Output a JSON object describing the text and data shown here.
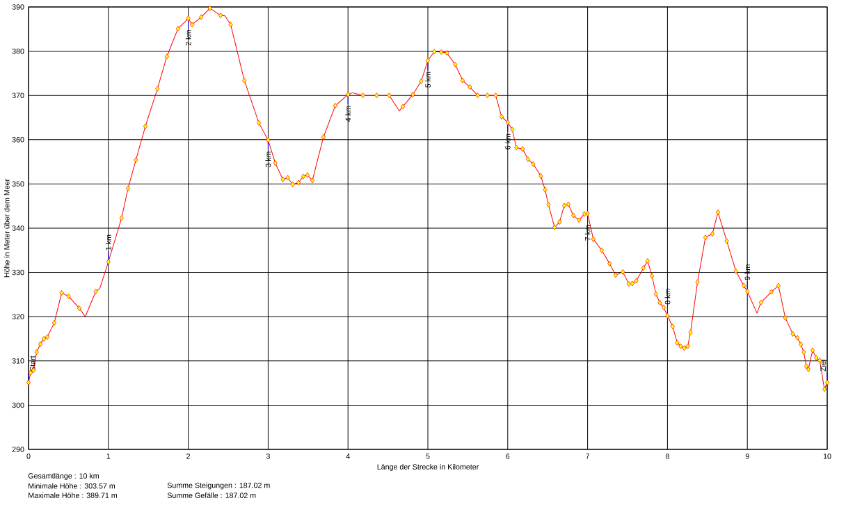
{
  "chart_data": {
    "type": "line",
    "xlabel": "Länge der Strecke in Kilometer",
    "ylabel": "Höhe in Meter über dem Meer",
    "xlim": [
      0,
      10
    ],
    "xticks": [
      0,
      1,
      2,
      3,
      4,
      5,
      6,
      7,
      8,
      9,
      10
    ],
    "ylim": [
      290,
      390
    ],
    "yticks": [
      290,
      300,
      310,
      320,
      330,
      340,
      350,
      360,
      370,
      380,
      390
    ],
    "grid": true,
    "series": [
      {
        "color": "#ff0000",
        "line_style": "solid",
        "x": [
          0,
          0.026,
          0.061,
          0.102,
          0.148,
          0.192,
          0.235,
          0.322,
          0.415,
          0.502,
          0.636,
          0.71,
          0.842,
          0.891,
          1.0,
          1.165,
          1.246,
          1.344,
          1.463,
          1.614,
          1.732,
          1.871,
          2.0,
          2.048,
          2.161,
          2.271,
          2.404,
          2.46,
          2.531,
          2.702,
          2.884,
          3.0,
          3.09,
          3.185,
          3.245,
          3.307,
          3.38,
          3.441,
          3.493,
          3.554,
          3.693,
          3.841,
          4.0,
          4.055,
          4.186,
          4.359,
          4.516,
          4.643,
          4.687,
          4.812,
          4.916,
          5.0,
          5.081,
          5.168,
          5.238,
          5.342,
          5.435,
          5.525,
          5.623,
          5.745,
          5.849,
          5.923,
          6.0,
          6.056,
          6.108,
          6.187,
          6.252,
          6.319,
          6.414,
          6.467,
          6.51,
          6.586,
          6.649,
          6.707,
          6.759,
          6.82,
          6.893,
          6.959,
          7.0,
          7.072,
          7.177,
          7.275,
          7.351,
          7.441,
          7.516,
          7.559,
          7.609,
          7.699,
          7.751,
          7.806,
          7.856,
          7.905,
          7.952,
          8.0,
          8.064,
          8.122,
          8.166,
          8.21,
          8.253,
          8.288,
          8.376,
          8.475,
          8.562,
          8.632,
          8.742,
          8.856,
          8.955,
          9.0,
          9.121,
          9.17,
          9.301,
          9.389,
          9.476,
          9.569,
          9.627,
          9.671,
          9.706,
          9.738,
          9.764,
          9.817,
          9.863,
          9.907,
          9.965,
          10.0
        ],
        "values": [
          305.1,
          307.3,
          307.9,
          312.0,
          313.8,
          315.0,
          315.4,
          318.6,
          325.4,
          324.6,
          321.9,
          320.0,
          325.7,
          326.3,
          332.4,
          342.3,
          349.0,
          355.4,
          363.0,
          371.5,
          378.8,
          385.1,
          387.4,
          386.0,
          387.7,
          389.7,
          388.1,
          388.0,
          386.0,
          373.4,
          363.8,
          359.9,
          354.7,
          351.0,
          351.4,
          349.9,
          350.3,
          351.7,
          352.0,
          350.8,
          360.6,
          367.7,
          370.2,
          370.6,
          370.0,
          370.0,
          370.0,
          366.5,
          367.5,
          370.2,
          373.2,
          377.9,
          379.9,
          379.8,
          379.6,
          377.0,
          373.4,
          371.9,
          370.0,
          370.0,
          370.0,
          365.2,
          363.9,
          362.3,
          358.2,
          357.9,
          355.6,
          354.5,
          351.8,
          348.7,
          345.3,
          340.2,
          341.4,
          345.1,
          345.4,
          342.9,
          341.8,
          343.2,
          343.3,
          337.5,
          335.0,
          332.0,
          329.4,
          330.1,
          327.4,
          327.5,
          328.1,
          331.0,
          332.6,
          329.2,
          325.1,
          323.1,
          322.1,
          320.2,
          317.8,
          314.1,
          313.3,
          312.9,
          313.3,
          316.4,
          327.8,
          337.9,
          338.7,
          343.6,
          337.1,
          330.3,
          327.0,
          325.7,
          320.8,
          323.2,
          325.6,
          327.0,
          319.7,
          316.1,
          315.2,
          313.7,
          312.0,
          308.8,
          308.1,
          312.4,
          310.7,
          310.1,
          303.6,
          305.1
        ]
      },
      {
        "type": "scatter",
        "color": "#ffff00",
        "marker": "diamond",
        "x": [
          0,
          0.026,
          0.061,
          0.102,
          0.148,
          0.192,
          0.235,
          0.322,
          0.415,
          0.502,
          0.636,
          0.842,
          1.0,
          1.165,
          1.246,
          1.344,
          1.463,
          1.614,
          1.732,
          1.871,
          2.0,
          2.048,
          2.161,
          2.271,
          2.404,
          2.531,
          2.702,
          2.884,
          3.0,
          3.09,
          3.185,
          3.245,
          3.307,
          3.38,
          3.441,
          3.493,
          3.554,
          3.693,
          3.841,
          4.0,
          4.186,
          4.359,
          4.516,
          4.687,
          4.812,
          4.916,
          5.0,
          5.081,
          5.168,
          5.238,
          5.342,
          5.435,
          5.525,
          5.623,
          5.745,
          5.849,
          5.923,
          6.0,
          6.056,
          6.108,
          6.187,
          6.252,
          6.319,
          6.414,
          6.467,
          6.51,
          6.586,
          6.649,
          6.707,
          6.759,
          6.82,
          6.893,
          6.959,
          7.0,
          7.072,
          7.177,
          7.275,
          7.351,
          7.441,
          7.516,
          7.559,
          7.609,
          7.699,
          7.751,
          7.806,
          7.856,
          7.905,
          7.952,
          8.0,
          8.064,
          8.122,
          8.166,
          8.21,
          8.253,
          8.288,
          8.376,
          8.475,
          8.562,
          8.632,
          8.742,
          8.856,
          8.955,
          9.0,
          9.17,
          9.301,
          9.389,
          9.476,
          9.569,
          9.627,
          9.671,
          9.706,
          9.738,
          9.764,
          9.817,
          9.863,
          9.907,
          9.965,
          10.0
        ],
        "values": [
          305.1,
          307.3,
          307.9,
          312.0,
          313.8,
          315.0,
          315.4,
          318.6,
          325.4,
          324.6,
          321.9,
          325.7,
          332.4,
          342.3,
          349.0,
          355.4,
          363.0,
          371.5,
          378.8,
          385.1,
          387.4,
          386.0,
          387.7,
          389.7,
          388.1,
          386.0,
          373.4,
          363.8,
          359.9,
          354.7,
          351.0,
          351.4,
          349.9,
          350.3,
          351.7,
          352.0,
          350.8,
          360.6,
          367.7,
          370.2,
          370.0,
          370.0,
          370.0,
          367.5,
          370.2,
          373.2,
          377.9,
          379.9,
          379.8,
          379.6,
          377.0,
          373.4,
          371.9,
          370.0,
          370.0,
          370.0,
          365.2,
          363.9,
          362.3,
          358.2,
          357.9,
          355.6,
          354.5,
          351.8,
          348.7,
          345.3,
          340.2,
          341.4,
          345.1,
          345.4,
          342.9,
          341.8,
          343.2,
          343.3,
          337.5,
          335.0,
          332.0,
          329.4,
          330.1,
          327.4,
          327.5,
          328.1,
          331.0,
          332.6,
          329.2,
          325.1,
          323.1,
          322.1,
          320.2,
          317.8,
          314.1,
          313.3,
          312.9,
          313.3,
          316.4,
          327.8,
          337.9,
          338.7,
          343.6,
          337.1,
          330.3,
          327.0,
          325.7,
          323.2,
          325.6,
          327.0,
          319.7,
          316.1,
          315.2,
          313.7,
          312.0,
          308.8,
          308.1,
          312.4,
          310.7,
          310.1,
          303.6,
          305.1
        ]
      }
    ],
    "annotations": [
      {
        "text": "Start",
        "x": 0,
        "y": 305.1
      },
      {
        "text": "1 km",
        "x": 1,
        "y": 332.4
      },
      {
        "text": "2 km",
        "x": 2,
        "y": 387.4
      },
      {
        "text": "3 km",
        "x": 3,
        "y": 359.9
      },
      {
        "text": "4 km",
        "x": 4,
        "y": 370.2
      },
      {
        "text": "5 km",
        "x": 5,
        "y": 377.9
      },
      {
        "text": "6 km",
        "x": 6,
        "y": 363.9
      },
      {
        "text": "7 km",
        "x": 7,
        "y": 343.3
      },
      {
        "text": "8 km",
        "x": 8,
        "y": 320.2
      },
      {
        "text": "9 km",
        "x": 9,
        "y": 325.7
      },
      {
        "text": "Ziel",
        "x": 10,
        "y": 305.1
      },
      "Gesamtlänge : 10 km",
      "Minimale Höhe : 303.57 m",
      "Maximale Höhe : 389.71 m",
      "Summe Steigungen : 187.02 m",
      "Summe Gefälle : 187.02 m"
    ]
  }
}
